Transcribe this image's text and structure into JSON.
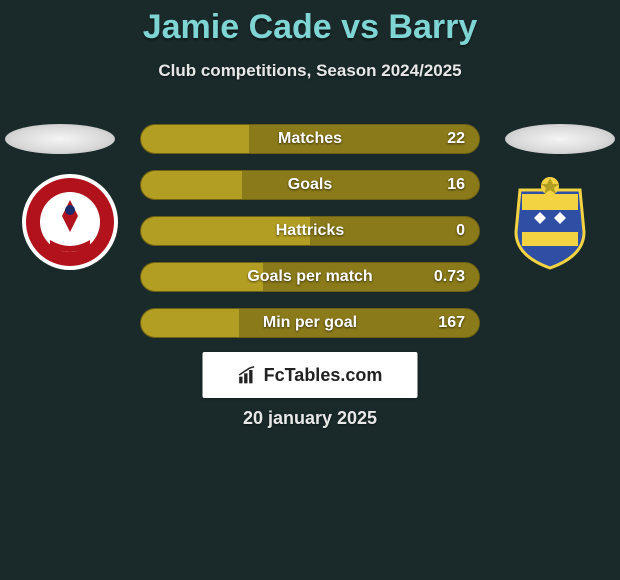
{
  "title": "Jamie Cade vs Barry",
  "subtitle": "Club competitions, Season 2024/2025",
  "stats": [
    {
      "label": "Matches",
      "value": "22",
      "fill_pct": 32
    },
    {
      "label": "Goals",
      "value": "16",
      "fill_pct": 30
    },
    {
      "label": "Hattricks",
      "value": "0",
      "fill_pct": 50
    },
    {
      "label": "Goals per match",
      "value": "0.73",
      "fill_pct": 36
    },
    {
      "label": "Min per goal",
      "value": "167",
      "fill_pct": 29
    }
  ],
  "bar_colors": {
    "track": "#8a7a1a",
    "fill": "#b29e22",
    "border": "#6e6013"
  },
  "title_color": "#7fd4d4",
  "text_color": "#e8e8e8",
  "background_color": "#1a2a2a",
  "logo_text": "FcTables.com",
  "date_text": "20 january 2025",
  "left_badge": {
    "name": "crawley-town-badge",
    "outer": "#ffffff",
    "ring": "#b1121b",
    "inner": "#ffffff",
    "accent": "#1a2a6a"
  },
  "right_badge": {
    "name": "stockport-county-badge",
    "shield_top": "#f4d342",
    "shield_mid": "#2e4fa3",
    "shield_bot": "#f4d342",
    "accent": "#ffffff"
  }
}
